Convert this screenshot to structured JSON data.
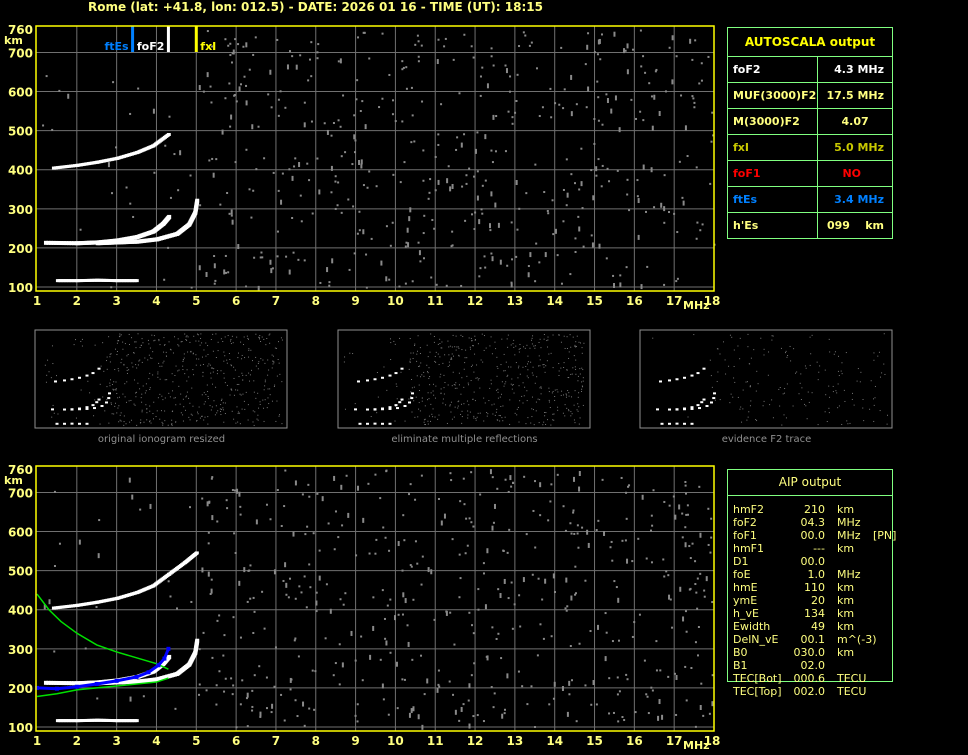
{
  "title": "Rome (lat: +41.8, lon: 012.5) - DATE: 2026 01 16 - TIME (UT): 18:15",
  "colors": {
    "axis": "#ffff00",
    "grid": "#707070",
    "table_border": "#80ff80",
    "ftEs": "#0080ff",
    "foF2": "#ffffff",
    "fxI": "#ffff00",
    "foF1": "#ff0000",
    "profile": "#00e000",
    "aip_trace": "#0000ff"
  },
  "autoscala": {
    "title": "AUTOSCALA output",
    "rows": [
      {
        "key": "foF2",
        "value": "4.3 MHz",
        "color": "#ffffff"
      },
      {
        "key": "MUF(3000)F2",
        "value": "17.5 MHz",
        "color": "#ffff80"
      },
      {
        "key": "M(3000)F2",
        "value": "4.07    ",
        "color": "#ffff80"
      },
      {
        "key": "fxI",
        "value": "5.0 MHz",
        "color": "#c8c800"
      },
      {
        "key": "foF1",
        "value": "NO      ",
        "color": "#ff0000"
      },
      {
        "key": "ftEs",
        "value": "3.4 MHz",
        "color": "#0080ff"
      },
      {
        "key": "h'Es",
        "value": "099    km",
        "color": "#ffff80"
      }
    ]
  },
  "aip": {
    "title": "AIP output",
    "rows": [
      [
        "hmF2",
        "210",
        "km",
        ""
      ],
      [
        "foF2",
        "04.3",
        "MHz",
        ""
      ],
      [
        "foF1",
        "00.0",
        "MHz",
        "[PN]"
      ],
      [
        "hmF1",
        "---",
        "km",
        ""
      ],
      [
        "D1",
        "00.0",
        "",
        ""
      ],
      [
        "foE",
        "1.0",
        "MHz",
        ""
      ],
      [
        "hmE",
        "110",
        "km",
        ""
      ],
      [
        "ymE",
        "20",
        "km",
        ""
      ],
      [
        "h_vE",
        "134",
        "km",
        ""
      ],
      [
        "Ewidth",
        "49",
        "km",
        ""
      ],
      [
        "DelN_vE",
        "00.1",
        "m^(-3)",
        ""
      ],
      [
        "B0",
        "030.0",
        "km",
        ""
      ],
      [
        "B1",
        "02.0",
        "",
        ""
      ],
      [
        "TEC[Bot]",
        "000.6",
        "TECU",
        ""
      ],
      [
        "TEC[Top]",
        "002.0",
        "TECU",
        ""
      ]
    ]
  },
  "thumbnails": [
    {
      "caption": "original ionogram resized"
    },
    {
      "caption": "eliminate multiple reflections"
    },
    {
      "caption": "evidence F2 trace"
    }
  ],
  "chart_data": [
    {
      "type": "scatter",
      "xlabel": "MHz",
      "ylabel": "km",
      "xlim": [
        1,
        18
      ],
      "ylim": [
        100,
        760
      ],
      "xticks": [
        "1",
        "2",
        "3",
        "4",
        "5",
        "6",
        "7",
        "8",
        "9",
        "10",
        "11",
        "12",
        "13",
        "14",
        "15",
        "16",
        "17",
        "18"
      ],
      "yticks": [
        "100",
        "200",
        "300",
        "400",
        "500",
        "600",
        "700",
        "760"
      ],
      "grid": true,
      "markers": [
        {
          "label": "ftEs",
          "freq": 3.4
        },
        {
          "label": "foF2",
          "freq": 4.3
        },
        {
          "label": "fxI",
          "freq": 5.0
        }
      ],
      "traces": {
        "E": [
          [
            1.5,
            115
          ],
          [
            2,
            115
          ],
          [
            2.5,
            116
          ],
          [
            3,
            115
          ],
          [
            3.5,
            115
          ]
        ],
        "F2_o": [
          [
            1.2,
            213
          ],
          [
            2,
            212
          ],
          [
            2.5,
            214
          ],
          [
            3,
            219
          ],
          [
            3.5,
            228
          ],
          [
            3.9,
            242
          ],
          [
            4.15,
            262
          ],
          [
            4.3,
            280
          ]
        ],
        "F2_x": [
          [
            2.5,
            212
          ],
          [
            3,
            214
          ],
          [
            3.5,
            216
          ],
          [
            4,
            222
          ],
          [
            4.5,
            236
          ],
          [
            4.8,
            260
          ],
          [
            4.95,
            290
          ],
          [
            5.0,
            322
          ]
        ],
        "F2_2hop": [
          [
            1.4,
            403
          ],
          [
            2,
            410
          ],
          [
            2.5,
            418
          ],
          [
            3,
            428
          ],
          [
            3.5,
            443
          ],
          [
            3.9,
            460
          ],
          [
            4.3,
            490
          ]
        ]
      }
    },
    {
      "type": "scatter",
      "xlabel": "MHz",
      "ylabel": "km",
      "xlim": [
        1,
        18
      ],
      "ylim": [
        100,
        760
      ],
      "xticks": [
        "1",
        "2",
        "3",
        "4",
        "5",
        "6",
        "7",
        "8",
        "9",
        "10",
        "11",
        "12",
        "13",
        "14",
        "15",
        "16",
        "17",
        "18"
      ],
      "yticks": [
        "100",
        "200",
        "300",
        "400",
        "500",
        "600",
        "700",
        "760"
      ],
      "grid": true,
      "traces": {
        "E": [
          [
            1.5,
            115
          ],
          [
            2,
            115
          ],
          [
            2.5,
            116
          ],
          [
            3,
            115
          ],
          [
            3.5,
            115
          ]
        ],
        "F2_o": [
          [
            1.2,
            213
          ],
          [
            2,
            212
          ],
          [
            2.5,
            214
          ],
          [
            3,
            219
          ],
          [
            3.5,
            228
          ],
          [
            3.9,
            242
          ],
          [
            4.15,
            262
          ],
          [
            4.3,
            280
          ]
        ],
        "F2_x": [
          [
            2.5,
            212
          ],
          [
            3,
            214
          ],
          [
            3.5,
            216
          ],
          [
            4,
            222
          ],
          [
            4.5,
            236
          ],
          [
            4.8,
            260
          ],
          [
            4.95,
            290
          ],
          [
            5.0,
            322
          ]
        ],
        "F2_2hop": [
          [
            1.4,
            403
          ],
          [
            2,
            410
          ],
          [
            2.5,
            418
          ],
          [
            3,
            428
          ],
          [
            3.5,
            443
          ],
          [
            3.9,
            460
          ],
          [
            4.3,
            490
          ],
          [
            4.7,
            520
          ],
          [
            5,
            545
          ]
        ]
      },
      "profile_upper": [
        [
          1,
          440
        ],
        [
          1.3,
          400
        ],
        [
          1.6,
          370
        ],
        [
          2,
          340
        ],
        [
          2.5,
          310
        ],
        [
          3,
          292
        ],
        [
          3.5,
          277
        ],
        [
          4,
          262
        ],
        [
          4.3,
          248
        ]
      ],
      "profile_lower": [
        [
          1,
          178
        ],
        [
          1.5,
          185
        ],
        [
          2,
          195
        ],
        [
          2.5,
          200
        ],
        [
          3,
          205
        ],
        [
          3.5,
          210
        ],
        [
          4,
          215
        ],
        [
          4.3,
          225
        ]
      ],
      "aip_trace": [
        [
          1,
          200
        ],
        [
          1.5,
          198
        ],
        [
          2,
          203
        ],
        [
          2.5,
          210
        ],
        [
          3,
          218
        ],
        [
          3.5,
          228
        ],
        [
          3.8,
          240
        ],
        [
          4.05,
          258
        ],
        [
          4.2,
          275
        ],
        [
          4.3,
          300
        ]
      ]
    }
  ]
}
